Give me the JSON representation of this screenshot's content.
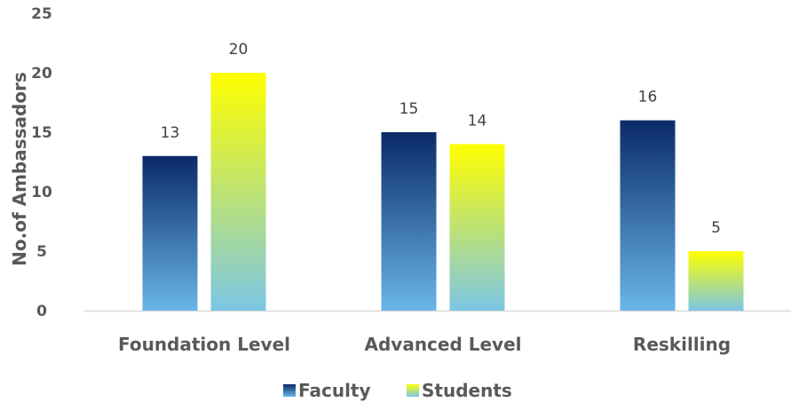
{
  "chart_data": {
    "type": "bar",
    "title": "",
    "xlabel": "",
    "ylabel": "No.of Ambassadors",
    "ylim": [
      0,
      25
    ],
    "yticks": [
      0,
      5,
      10,
      15,
      20,
      25
    ],
    "grid": false,
    "legend_position": "bottom",
    "categories": [
      "Foundation Level",
      "Advanced Level",
      "Reskilling"
    ],
    "series": [
      {
        "name": "Faculty",
        "values": [
          13,
          15,
          16
        ],
        "gradient": [
          "#0a2a66",
          "#6ab6e8"
        ]
      },
      {
        "name": "Students",
        "values": [
          20,
          14,
          5
        ],
        "gradient": [
          "#ffff00",
          "#7cc6e6"
        ]
      }
    ],
    "data_labels": true
  }
}
